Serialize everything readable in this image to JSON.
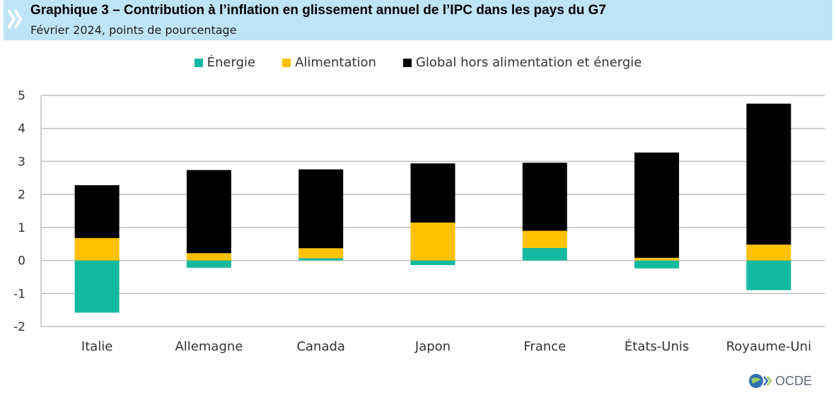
{
  "header": {
    "title": "Graphique 3 – Contribution à l’inflation en glissement annuel de l’IPC dans les pays du G7",
    "subtitle": "Février 2024, points de pourcentage"
  },
  "colors": {
    "header_bg": "#bfe3f7",
    "energie": "#12b9a0",
    "alimentation": "#ffc000",
    "global": "#000000",
    "grid": "#bfbfbf"
  },
  "logo": {
    "text": "OCDE",
    "icon": "oecd-globe-icon"
  },
  "chart_data": {
    "type": "bar",
    "stacked": true,
    "title": "",
    "xlabel": "",
    "ylabel": "",
    "ylim": [
      -2,
      5
    ],
    "yticks": [
      -2,
      -1,
      0,
      1,
      2,
      3,
      4,
      5
    ],
    "grid": true,
    "legend_position": "top-center",
    "categories": [
      "Italie",
      "Allemagne",
      "Canada",
      "Japon",
      "France",
      "États-Unis",
      "Royaume-Uni"
    ],
    "series": [
      {
        "name": "Énergie",
        "color": "#12b9a0",
        "values": [
          -1.58,
          -0.22,
          0.07,
          -0.14,
          0.38,
          -0.24,
          -0.9
        ]
      },
      {
        "name": "Alimentation",
        "color": "#ffc000",
        "values": [
          0.68,
          0.22,
          0.3,
          1.15,
          0.52,
          0.08,
          0.48
        ]
      },
      {
        "name": "Global hors alimentation et énergie",
        "color": "#000000",
        "values": [
          1.6,
          2.52,
          2.39,
          1.79,
          2.06,
          3.19,
          4.27
        ]
      }
    ]
  }
}
